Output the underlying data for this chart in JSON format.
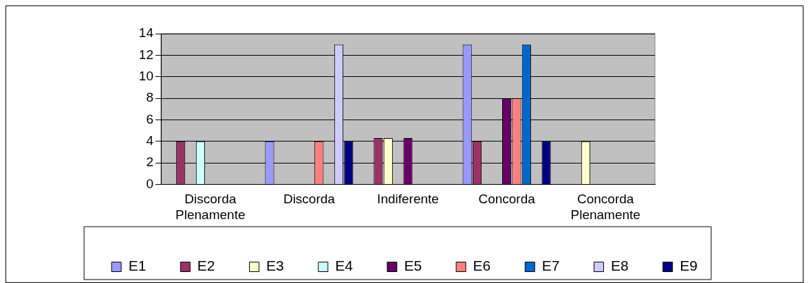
{
  "chart_data": {
    "type": "bar",
    "categories": [
      "Discorda Plenamente",
      "Discorda",
      "Indiferente",
      "Concorda",
      "Concorda Plenamente"
    ],
    "series": [
      {
        "name": "E1",
        "color": "#9999ff",
        "values": [
          0,
          4,
          0,
          13,
          0
        ]
      },
      {
        "name": "E2",
        "color": "#993366",
        "values": [
          4,
          0,
          4.3,
          4,
          0
        ]
      },
      {
        "name": "E3",
        "color": "#ffffcc",
        "values": [
          0,
          0,
          4.3,
          0,
          4
        ]
      },
      {
        "name": "E4",
        "color": "#ccffff",
        "values": [
          4,
          0,
          0,
          0,
          0
        ]
      },
      {
        "name": "E5",
        "color": "#660066",
        "values": [
          0,
          0,
          4.3,
          8,
          0
        ]
      },
      {
        "name": "E6",
        "color": "#ff8080",
        "values": [
          0,
          4,
          0,
          8,
          0
        ]
      },
      {
        "name": "E7",
        "color": "#0066cc",
        "values": [
          0,
          0,
          0,
          13,
          0
        ]
      },
      {
        "name": "E8",
        "color": "#ccccff",
        "values": [
          0,
          13,
          0,
          0,
          0
        ]
      },
      {
        "name": "E9",
        "color": "#000080",
        "values": [
          0,
          4,
          0,
          4,
          0
        ]
      }
    ],
    "ylim": [
      0,
      14
    ],
    "yticks": [
      0,
      2,
      4,
      6,
      8,
      10,
      12,
      14
    ],
    "grid": "y",
    "legend": "bottom"
  }
}
